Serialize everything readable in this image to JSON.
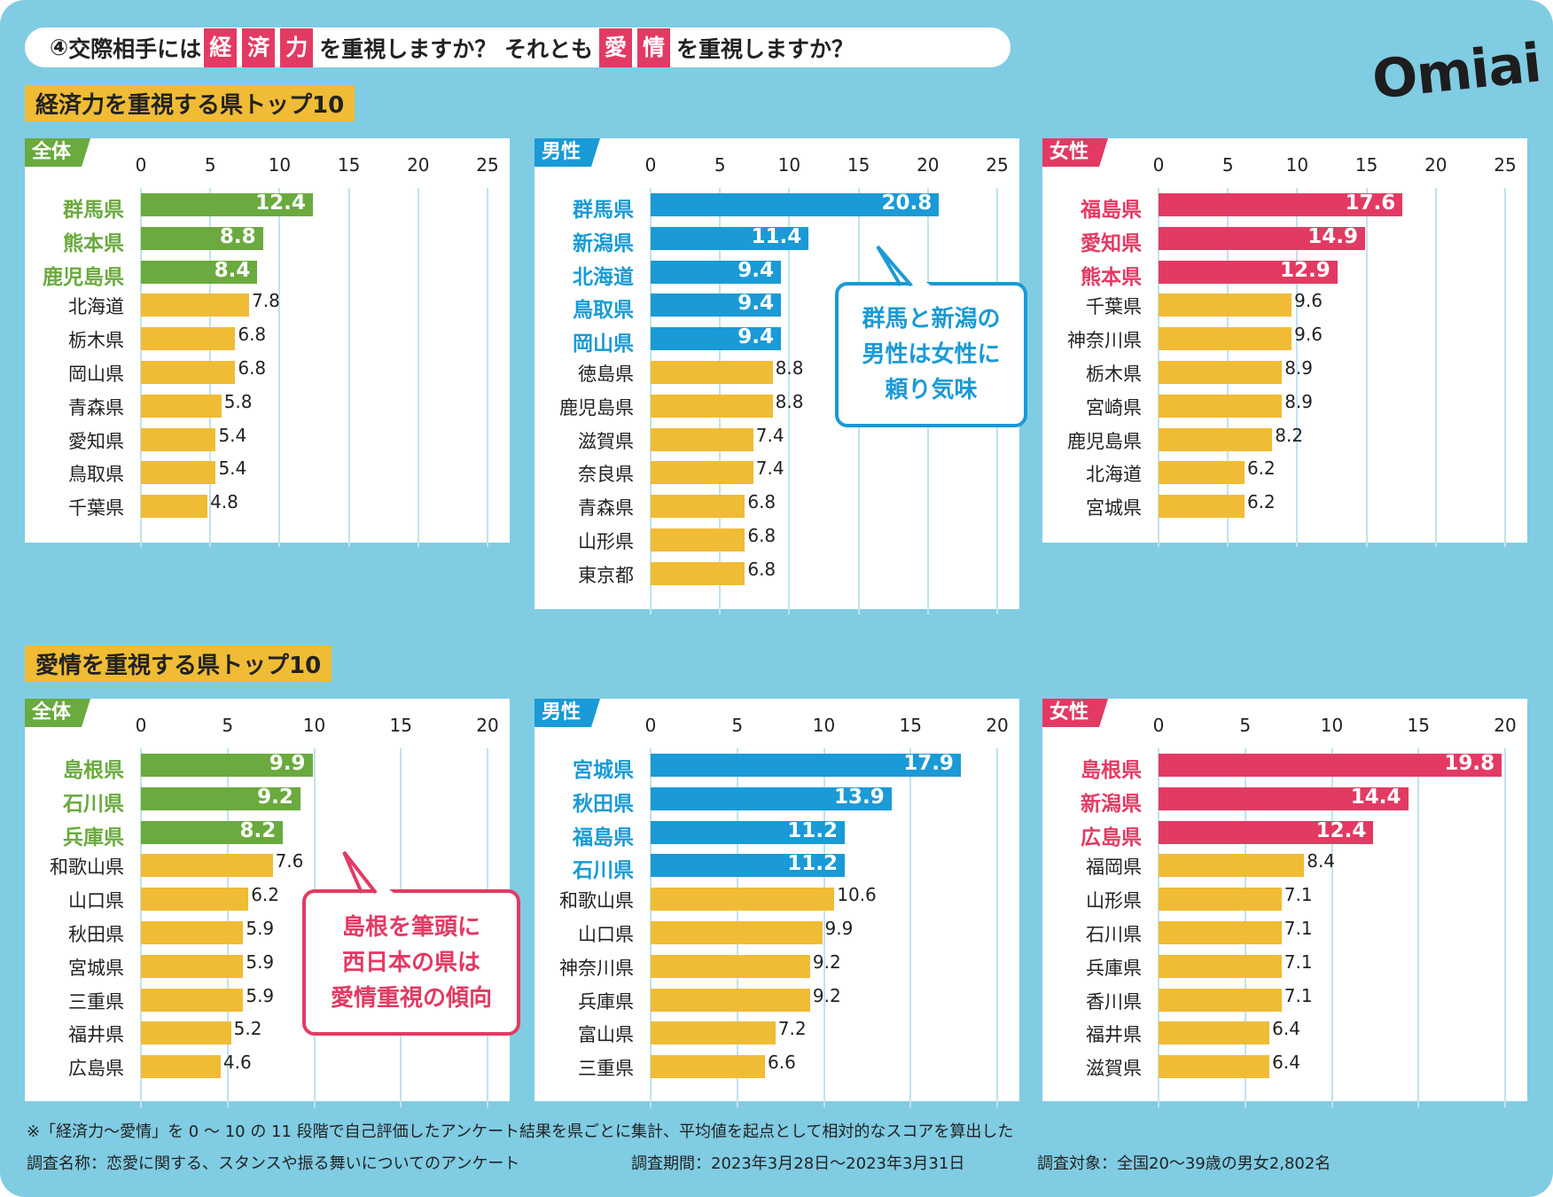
{
  "title": {
    "number": "④",
    "p1": "交際相手には",
    "hl1": [
      "経",
      "済",
      "力"
    ],
    "p2": "を重視しますか？ それとも",
    "hl2": [
      "愛",
      "情"
    ],
    "p3": "を重視しますか？"
  },
  "logo": "Omiai",
  "sections": [
    "経済力を重視する県トップ10",
    "愛情を重視する県トップ10"
  ],
  "colors": {
    "background": "#80cce3",
    "all": "#6aaa3e",
    "male": "#1a9ad6",
    "female": "#e33a63",
    "other_bar": "#f0bc35"
  },
  "callouts": [
    "群馬と新潟の\n男性は女性に\n頼り気味",
    "島根を筆頭に\n西日本の県は\n愛情重視の傾向"
  ],
  "footer": {
    "note": "※「経済力～愛情」を 0 ～ 10 の 11 段階で自己評価したアンケート結果を県ごとに集計、平均値を起点として相対的なスコアを算出した",
    "survey_name": "調査名称：恋愛に関する、スタンスや振る舞いについてのアンケート",
    "period": "調査期間：2023年3月28日～2023年3月31日",
    "target": "調査対象：全国20～39歳の男女2,802名"
  },
  "chart_data": [
    {
      "type": "bar",
      "orientation": "horizontal",
      "section": 0,
      "panel": "全体",
      "group": "all",
      "xlim": [
        0,
        25
      ],
      "ticks": [
        0,
        5,
        10,
        15,
        20,
        25
      ],
      "highlight_top": 3,
      "categories": [
        "群馬県",
        "熊本県",
        "鹿児島県",
        "北海道",
        "栃木県",
        "岡山県",
        "青森県",
        "愛知県",
        "鳥取県",
        "千葉県"
      ],
      "values": [
        12.4,
        8.8,
        8.4,
        7.8,
        6.8,
        6.8,
        5.8,
        5.4,
        5.4,
        4.8
      ]
    },
    {
      "type": "bar",
      "orientation": "horizontal",
      "section": 0,
      "panel": "男性",
      "group": "male",
      "xlim": [
        0,
        25
      ],
      "ticks": [
        0,
        5,
        10,
        15,
        20,
        25
      ],
      "highlight_top": 5,
      "categories": [
        "群馬県",
        "新潟県",
        "北海道",
        "鳥取県",
        "岡山県",
        "徳島県",
        "鹿児島県",
        "滋賀県",
        "奈良県",
        "青森県",
        "山形県",
        "東京都"
      ],
      "values": [
        20.8,
        11.4,
        9.4,
        9.4,
        9.4,
        8.8,
        8.8,
        7.4,
        7.4,
        6.8,
        6.8,
        6.8
      ]
    },
    {
      "type": "bar",
      "orientation": "horizontal",
      "section": 0,
      "panel": "女性",
      "group": "female",
      "xlim": [
        0,
        25
      ],
      "ticks": [
        0,
        5,
        10,
        15,
        20,
        25
      ],
      "highlight_top": 3,
      "categories": [
        "福島県",
        "愛知県",
        "熊本県",
        "千葉県",
        "神奈川県",
        "栃木県",
        "宮崎県",
        "鹿児島県",
        "北海道",
        "宮城県"
      ],
      "values": [
        17.6,
        14.9,
        12.9,
        9.6,
        9.6,
        8.9,
        8.9,
        8.2,
        6.2,
        6.2
      ]
    },
    {
      "type": "bar",
      "orientation": "horizontal",
      "section": 1,
      "panel": "全体",
      "group": "all",
      "xlim": [
        0,
        20
      ],
      "ticks": [
        0,
        5,
        10,
        15,
        20
      ],
      "highlight_top": 3,
      "categories": [
        "島根県",
        "石川県",
        "兵庫県",
        "和歌山県",
        "山口県",
        "秋田県",
        "宮城県",
        "三重県",
        "福井県",
        "広島県"
      ],
      "values": [
        9.9,
        9.2,
        8.2,
        7.6,
        6.2,
        5.9,
        5.9,
        5.9,
        5.2,
        4.6
      ]
    },
    {
      "type": "bar",
      "orientation": "horizontal",
      "section": 1,
      "panel": "男性",
      "group": "male",
      "xlim": [
        0,
        20
      ],
      "ticks": [
        0,
        5,
        10,
        15,
        20
      ],
      "highlight_top": 4,
      "categories": [
        "宮城県",
        "秋田県",
        "福島県",
        "石川県",
        "和歌山県",
        "山口県",
        "神奈川県",
        "兵庫県",
        "富山県",
        "三重県"
      ],
      "values": [
        17.9,
        13.9,
        11.2,
        11.2,
        10.6,
        9.9,
        9.2,
        9.2,
        7.2,
        6.6
      ]
    },
    {
      "type": "bar",
      "orientation": "horizontal",
      "section": 1,
      "panel": "女性",
      "group": "female",
      "xlim": [
        0,
        20
      ],
      "ticks": [
        0,
        5,
        10,
        15,
        20
      ],
      "highlight_top": 3,
      "categories": [
        "島根県",
        "新潟県",
        "広島県",
        "福岡県",
        "山形県",
        "石川県",
        "兵庫県",
        "香川県",
        "福井県",
        "滋賀県"
      ],
      "values": [
        19.8,
        14.4,
        12.4,
        8.4,
        7.1,
        7.1,
        7.1,
        7.1,
        6.4,
        6.4
      ]
    }
  ]
}
